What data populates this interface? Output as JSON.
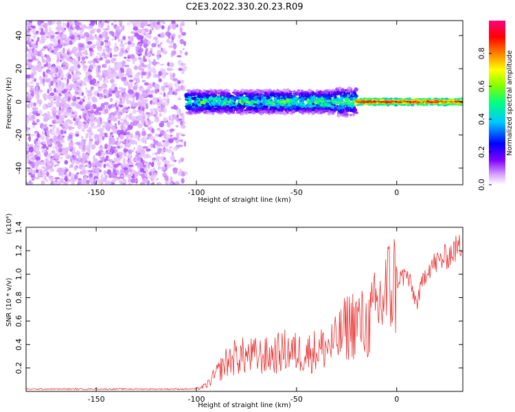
{
  "title": "C2E3.2022.330.20.23.R09",
  "chart_data": [
    {
      "type": "heatmap",
      "xlabel": "Height of straight line (km)",
      "ylabel": "Frequency (Hz)",
      "xlim": [
        -185,
        33
      ],
      "ylim": [
        -50,
        49
      ],
      "x_ticks": [
        -150,
        -100,
        -50,
        0
      ],
      "y_ticks": [
        -40,
        -20,
        0,
        20,
        40
      ],
      "colorbar": {
        "label": "Normalized spectral amplitude",
        "range": [
          0.0,
          1.0
        ],
        "ticks": [
          "0.0",
          "0.2",
          "0.4",
          "0.6",
          "0.8"
        ],
        "colors": [
          "#ffffff",
          "#d9a6ff",
          "#8000ff",
          "#0000ff",
          "#00c8ff",
          "#00ff80",
          "#80ff00",
          "#ffff00",
          "#ff8000",
          "#ff0000",
          "#ff0080"
        ]
      },
      "regions": [
        {
          "x_range": [
            -185,
            -105
          ],
          "freq_range": [
            -50,
            49
          ],
          "amplitude": 0.05,
          "description_type": "noise"
        },
        {
          "x_range": [
            -105,
            -20
          ],
          "freq_center": 0,
          "freq_halfwidth": 7,
          "amplitude": 0.4
        },
        {
          "x_range": [
            -20,
            33
          ],
          "freq_center": 0,
          "freq_halfwidth": 2,
          "amplitude": 0.95
        }
      ]
    },
    {
      "type": "line",
      "xlabel": "Height of straight line (km)",
      "ylabel": "SNR (10 * v/v)",
      "y_multiplier": "(x10⁴)",
      "xlim": [
        -185,
        33
      ],
      "ylim": [
        0,
        1.4
      ],
      "x_ticks": [
        -150,
        -100,
        -50,
        0
      ],
      "y_ticks": [
        0.2,
        0.4,
        0.6,
        0.8,
        1.0,
        1.2,
        1.4
      ],
      "y_tick_labels": [
        "0.2",
        "0.4",
        "0.6",
        "0.8",
        "1.0",
        "1.2",
        "1.4"
      ],
      "color": "#e83030",
      "series": [
        {
          "x": [
            -185,
            -170,
            -150,
            -130,
            -110,
            -100,
            -95,
            -90,
            -85,
            -80,
            -75,
            -70,
            -65,
            -60,
            -55,
            -50,
            -45,
            -40,
            -35,
            -30,
            -25,
            -20,
            -15,
            -10,
            -5,
            0,
            5,
            10,
            15,
            20,
            25,
            30,
            33
          ],
          "y": [
            0.02,
            0.02,
            0.02,
            0.02,
            0.02,
            0.02,
            0.05,
            0.15,
            0.25,
            0.3,
            0.3,
            0.3,
            0.3,
            0.32,
            0.35,
            0.33,
            0.33,
            0.35,
            0.38,
            0.42,
            0.55,
            0.6,
            0.55,
            0.7,
            0.85,
            0.95,
            1.0,
            0.75,
            1.05,
            1.1,
            1.15,
            1.22,
            1.25
          ]
        }
      ]
    }
  ]
}
